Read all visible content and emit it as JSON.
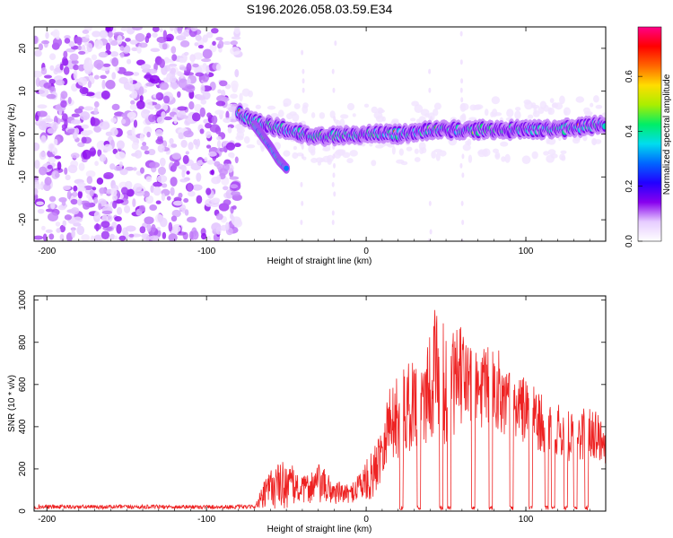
{
  "title": "S196.2026.058.03.59.E34",
  "chart_data": [
    {
      "type": "heatmap",
      "xlabel": "Height of straight line (km)",
      "ylabel": "Frequency (Hz)",
      "xlim": [
        -208,
        150
      ],
      "ylim": [
        -25,
        25
      ],
      "xticks": [
        -200,
        -100,
        0,
        100
      ],
      "yticks": [
        -20,
        -10,
        0,
        10,
        20
      ],
      "colorbar": {
        "label": "Normalized spectral amplitude",
        "range": [
          0.0,
          0.78
        ],
        "ticks": [
          0.0,
          0.2,
          0.4,
          0.6
        ],
        "colormap": [
          "#ffffff",
          "#e6ccff",
          "#8800ee",
          "#2200ff",
          "#0066ff",
          "#00ddee",
          "#00ee66",
          "#aaee00",
          "#ffdd00",
          "#ff6600",
          "#ff0000",
          "#ff0088"
        ]
      },
      "noise_region_x": [
        -208,
        -80
      ],
      "features": [
        {
          "name": "main_trace_center_hz",
          "x": [
            -80,
            -75,
            -70,
            -60,
            -50,
            -40,
            -30,
            -20,
            -10,
            0,
            20,
            40,
            60,
            80,
            100,
            120,
            140,
            150
          ],
          "y": [
            5,
            4,
            3,
            2,
            1,
            0,
            -0.5,
            -0.5,
            0,
            0,
            0,
            1,
            1,
            1,
            1,
            1,
            2,
            2
          ]
        },
        {
          "name": "descending_branch_hz",
          "x": [
            -70,
            -60,
            -55,
            -50
          ],
          "y": [
            2,
            -3,
            -6,
            -8
          ]
        },
        {
          "name": "vertical_streaks_km",
          "x": [
            -40,
            -20,
            40,
            60
          ]
        }
      ]
    },
    {
      "type": "line",
      "xlabel": "Height of straight line (km)",
      "ylabel": "SNR (10 * v/v)",
      "xlim": [
        -208,
        150
      ],
      "ylim": [
        0,
        1020
      ],
      "xticks": [
        -200,
        -100,
        0,
        100
      ],
      "yticks": [
        0,
        200,
        400,
        600,
        800,
        1000
      ],
      "series": [
        {
          "name": "SNR",
          "color": "#ee2222",
          "envelope": {
            "x": [
              -208,
              -80,
              -70,
              -65,
              -60,
              -50,
              -40,
              -30,
              -20,
              -10,
              -5,
              0,
              5,
              10,
              15,
              20,
              30,
              40,
              45,
              50,
              60,
              70,
              80,
              90,
              100,
              110,
              120,
              130,
              140,
              150
            ],
            "mean": [
              20,
              20,
              20,
              60,
              110,
              130,
              100,
              130,
              90,
              80,
              120,
              140,
              180,
              320,
              430,
              440,
              520,
              600,
              700,
              560,
              640,
              560,
              600,
              500,
              480,
              420,
              380,
              340,
              400,
              320
            ],
            "amp": [
              10,
              10,
              8,
              60,
              100,
              120,
              60,
              100,
              60,
              40,
              80,
              100,
              120,
              160,
              180,
              200,
              220,
              280,
              320,
              260,
              240,
              200,
              200,
              180,
              160,
              140,
              130,
              120,
              140,
              100
            ]
          },
          "dips_km": [
            22,
            33,
            47,
            52,
            67,
            78,
            91,
            103,
            113,
            117,
            125,
            131,
            138
          ]
        }
      ]
    }
  ]
}
